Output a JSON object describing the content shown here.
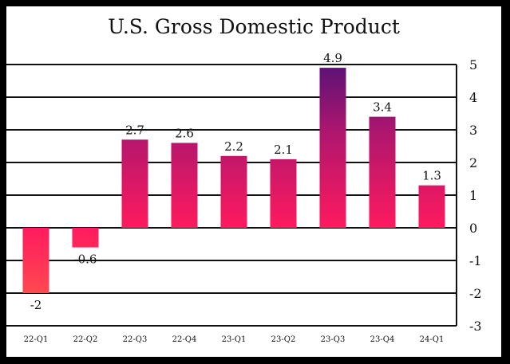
{
  "chart_data": {
    "type": "bar",
    "title": "U.S. Gross Domestic Product",
    "xlabel": "",
    "ylabel": "",
    "categories": [
      "22-Q1",
      "22-Q2",
      "22-Q3",
      "22-Q4",
      "23-Q1",
      "23-Q2",
      "23-Q3",
      "23-Q4",
      "24-Q1"
    ],
    "values": [
      -2,
      -0.6,
      2.7,
      2.6,
      2.2,
      2.1,
      4.9,
      3.4,
      1.3
    ],
    "data_labels": [
      "-2",
      "-0.6",
      "2.7",
      "2.6",
      "2.2",
      "2.1",
      "4.9",
      "3.4",
      "1.3"
    ],
    "ylim": [
      -3,
      5
    ],
    "yticks": [
      5,
      4,
      3,
      2,
      1,
      0,
      -1,
      -2,
      -3
    ],
    "ytick_labels": [
      "5",
      "4",
      "3",
      "2",
      "1",
      "0",
      "-1",
      "-2",
      "-3"
    ],
    "y_axis_position": "right",
    "grid": true,
    "colors": {
      "low": "#ff4a4f",
      "mid": "#ff1a5e",
      "high": "#5a1276",
      "background": "#000000",
      "panel": "#ffffff"
    }
  }
}
